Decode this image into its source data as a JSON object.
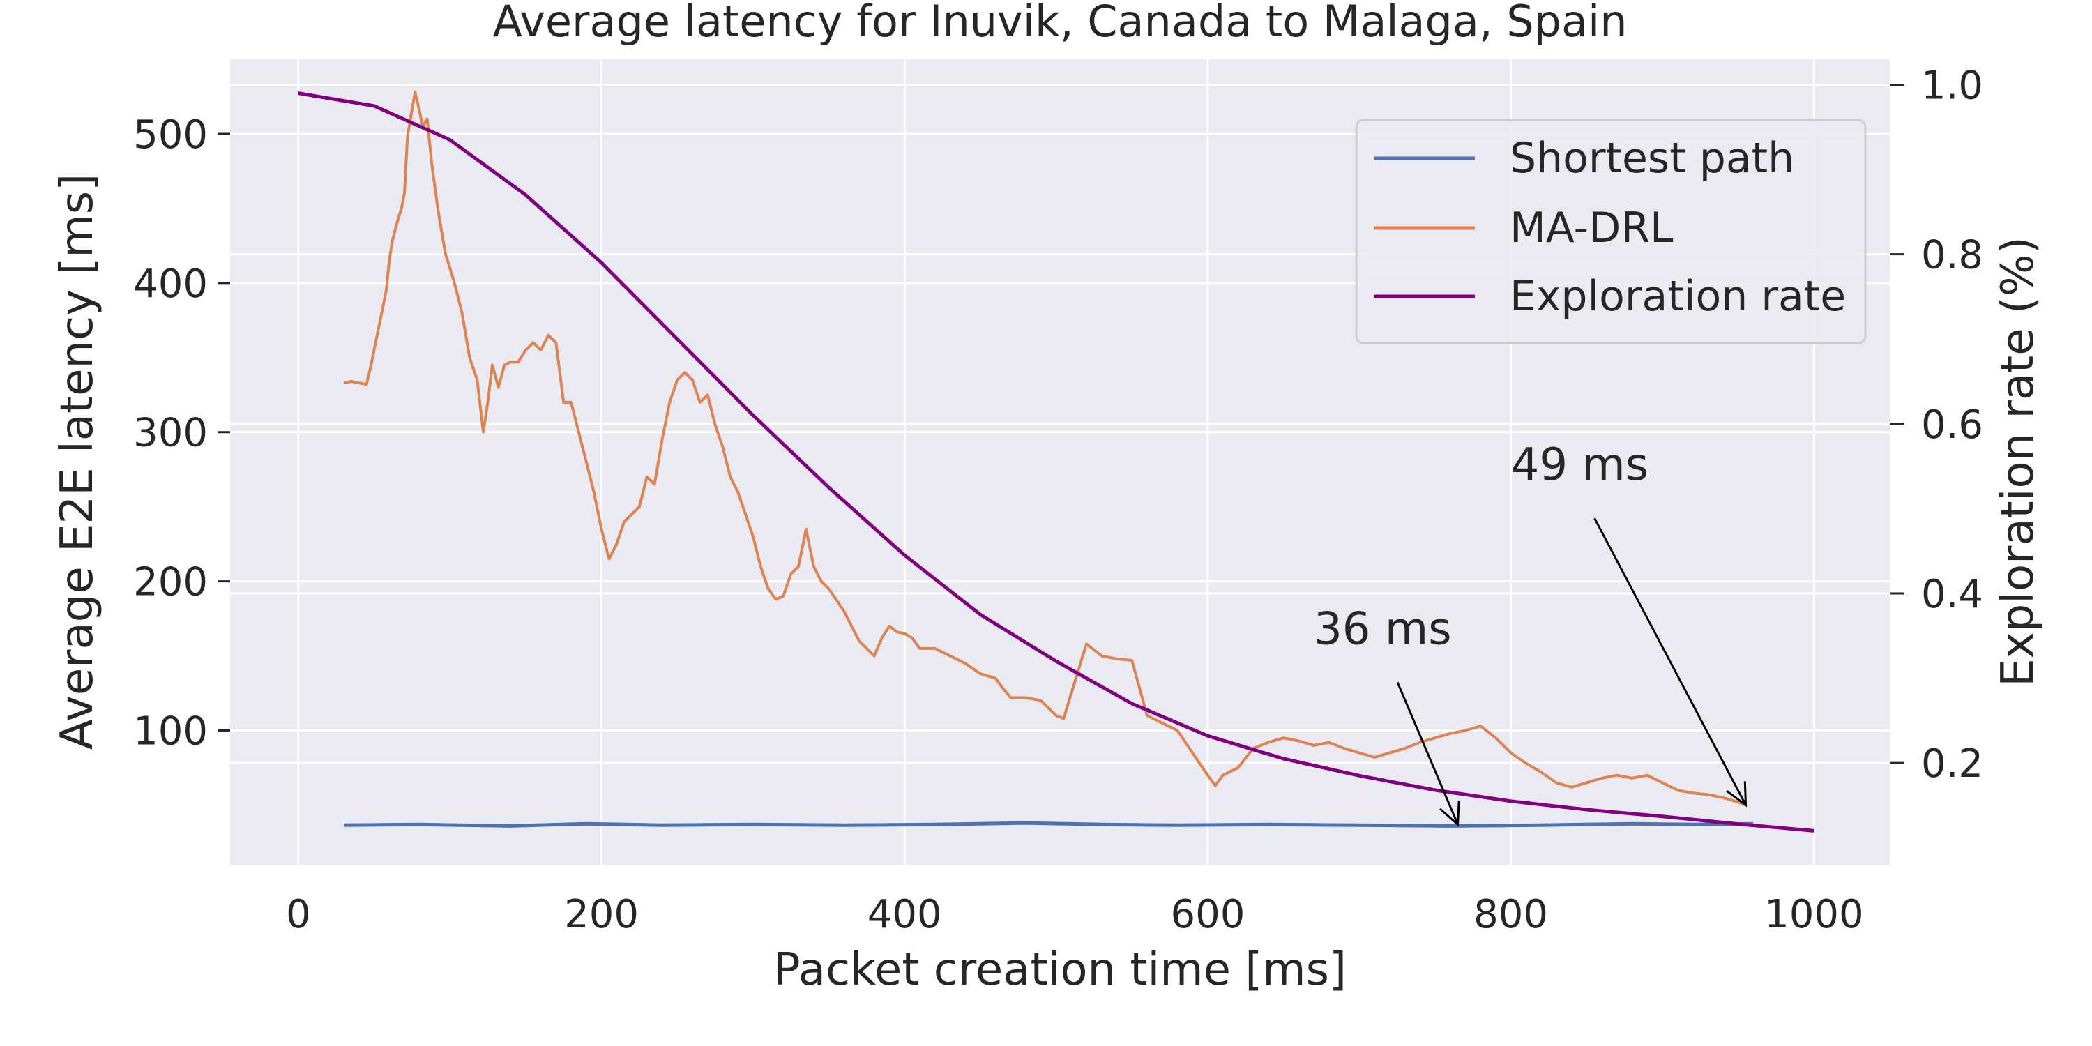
{
  "chart_data": {
    "type": "line",
    "title": "Average latency for Inuvik, Canada to Malaga, Spain",
    "xlabel": "Packet creation time [ms]",
    "ylabel": "Average E2E latency [ms]",
    "y2label": "Exploration rate (%)",
    "xlim": [
      -45,
      1050
    ],
    "ylim": [
      10,
      550
    ],
    "y2lim": [
      0.08,
      1.03
    ],
    "x_ticks": [
      0,
      200,
      400,
      600,
      800,
      1000
    ],
    "y_ticks": [
      100,
      200,
      300,
      400,
      500
    ],
    "y2_ticks": [
      0.2,
      0.4,
      0.6,
      0.8,
      1.0
    ],
    "x_tick_labels": [
      "0",
      "200",
      "400",
      "600",
      "800",
      "1000"
    ],
    "y_tick_labels": [
      "100",
      "200",
      "300",
      "400",
      "500"
    ],
    "y2_tick_labels": [
      "0.2",
      "0.4",
      "0.6",
      "0.8",
      "1.0"
    ],
    "grid": true,
    "legend_position": "top-right",
    "colors": {
      "background": "#eaeaf2",
      "grid": "#ffffff",
      "shortest_path": "#4c72b0",
      "ma_drl": "#dd8452",
      "exploration": "#800080"
    },
    "series": [
      {
        "name": "Shortest path",
        "axis": "left",
        "x": [
          30,
          80,
          140,
          190,
          240,
          300,
          360,
          420,
          480,
          530,
          580,
          640,
          700,
          760,
          820,
          880,
          920,
          960
        ],
        "values": [
          36.5,
          37,
          36,
          37.5,
          36.5,
          37,
          36.5,
          37,
          38,
          37,
          36.5,
          37,
          36.5,
          36,
          36.5,
          37.5,
          37,
          37.5
        ]
      },
      {
        "name": "MA-DRL",
        "axis": "left",
        "x": [
          30,
          35,
          45,
          48,
          52,
          55,
          58,
          60,
          62,
          65,
          68,
          70,
          72,
          74,
          77,
          80,
          82,
          85,
          88,
          92,
          97,
          100,
          103,
          108,
          113,
          118,
          122,
          125,
          128,
          132,
          136,
          140,
          145,
          150,
          155,
          160,
          165,
          170,
          175,
          180,
          185,
          190,
          195,
          200,
          205,
          210,
          215,
          220,
          225,
          230,
          235,
          240,
          245,
          250,
          255,
          260,
          265,
          270,
          275,
          280,
          285,
          290,
          295,
          300,
          305,
          310,
          315,
          320,
          325,
          330,
          335,
          340,
          345,
          350,
          360,
          370,
          380,
          385,
          390,
          395,
          400,
          405,
          410,
          420,
          430,
          440,
          450,
          460,
          465,
          470,
          480,
          490,
          495,
          500,
          505,
          510,
          520,
          530,
          540,
          550,
          560,
          570,
          580,
          590,
          600,
          605,
          610,
          620,
          630,
          640,
          650,
          660,
          670,
          680,
          690,
          700,
          710,
          720,
          730,
          740,
          750,
          760,
          770,
          780,
          790,
          800,
          810,
          820,
          830,
          840,
          850,
          860,
          870,
          880,
          890,
          900,
          910,
          920,
          930,
          940,
          950,
          955
        ],
        "values": [
          333,
          334,
          332,
          345,
          365,
          380,
          395,
          415,
          428,
          440,
          450,
          460,
          498,
          510,
          528,
          515,
          505,
          510,
          480,
          450,
          420,
          410,
          400,
          380,
          350,
          335,
          300,
          320,
          345,
          330,
          345,
          347,
          347,
          355,
          360,
          355,
          365,
          360,
          320,
          320,
          300,
          280,
          260,
          235,
          215,
          225,
          240,
          245,
          250,
          270,
          265,
          295,
          320,
          335,
          340,
          335,
          320,
          325,
          305,
          290,
          270,
          260,
          245,
          230,
          210,
          195,
          188,
          190,
          205,
          210,
          235,
          210,
          200,
          195,
          180,
          160,
          150,
          162,
          170,
          166,
          165,
          162,
          155,
          155,
          150,
          145,
          138,
          135,
          128,
          122,
          122,
          120,
          115,
          110,
          108,
          125,
          158,
          150,
          148,
          147,
          110,
          105,
          100,
          85,
          70,
          63,
          70,
          75,
          88,
          92,
          95,
          93,
          90,
          92,
          88,
          85,
          82,
          85,
          88,
          92,
          95,
          98,
          100,
          103,
          95,
          85,
          78,
          72,
          65,
          62,
          65,
          68,
          70,
          68,
          70,
          65,
          60,
          58,
          57,
          55,
          52,
          50
        ]
      },
      {
        "name": "Exploration rate",
        "axis": "right",
        "x": [
          0,
          50,
          100,
          150,
          200,
          250,
          300,
          350,
          400,
          450,
          500,
          550,
          600,
          650,
          700,
          750,
          800,
          850,
          900,
          950,
          1000
        ],
        "values": [
          0.99,
          0.975,
          0.935,
          0.87,
          0.79,
          0.7,
          0.61,
          0.525,
          0.445,
          0.375,
          0.32,
          0.27,
          0.232,
          0.205,
          0.185,
          0.168,
          0.155,
          0.145,
          0.137,
          0.128,
          0.12
        ]
      }
    ],
    "annotations": [
      {
        "text": "36 ms",
        "text_x": 670,
        "text_y": 158,
        "target_x": 765,
        "target_y": 37
      },
      {
        "text": "49 ms",
        "text_x": 800,
        "text_y": 268,
        "target_x": 955,
        "target_y": 50
      }
    ]
  }
}
